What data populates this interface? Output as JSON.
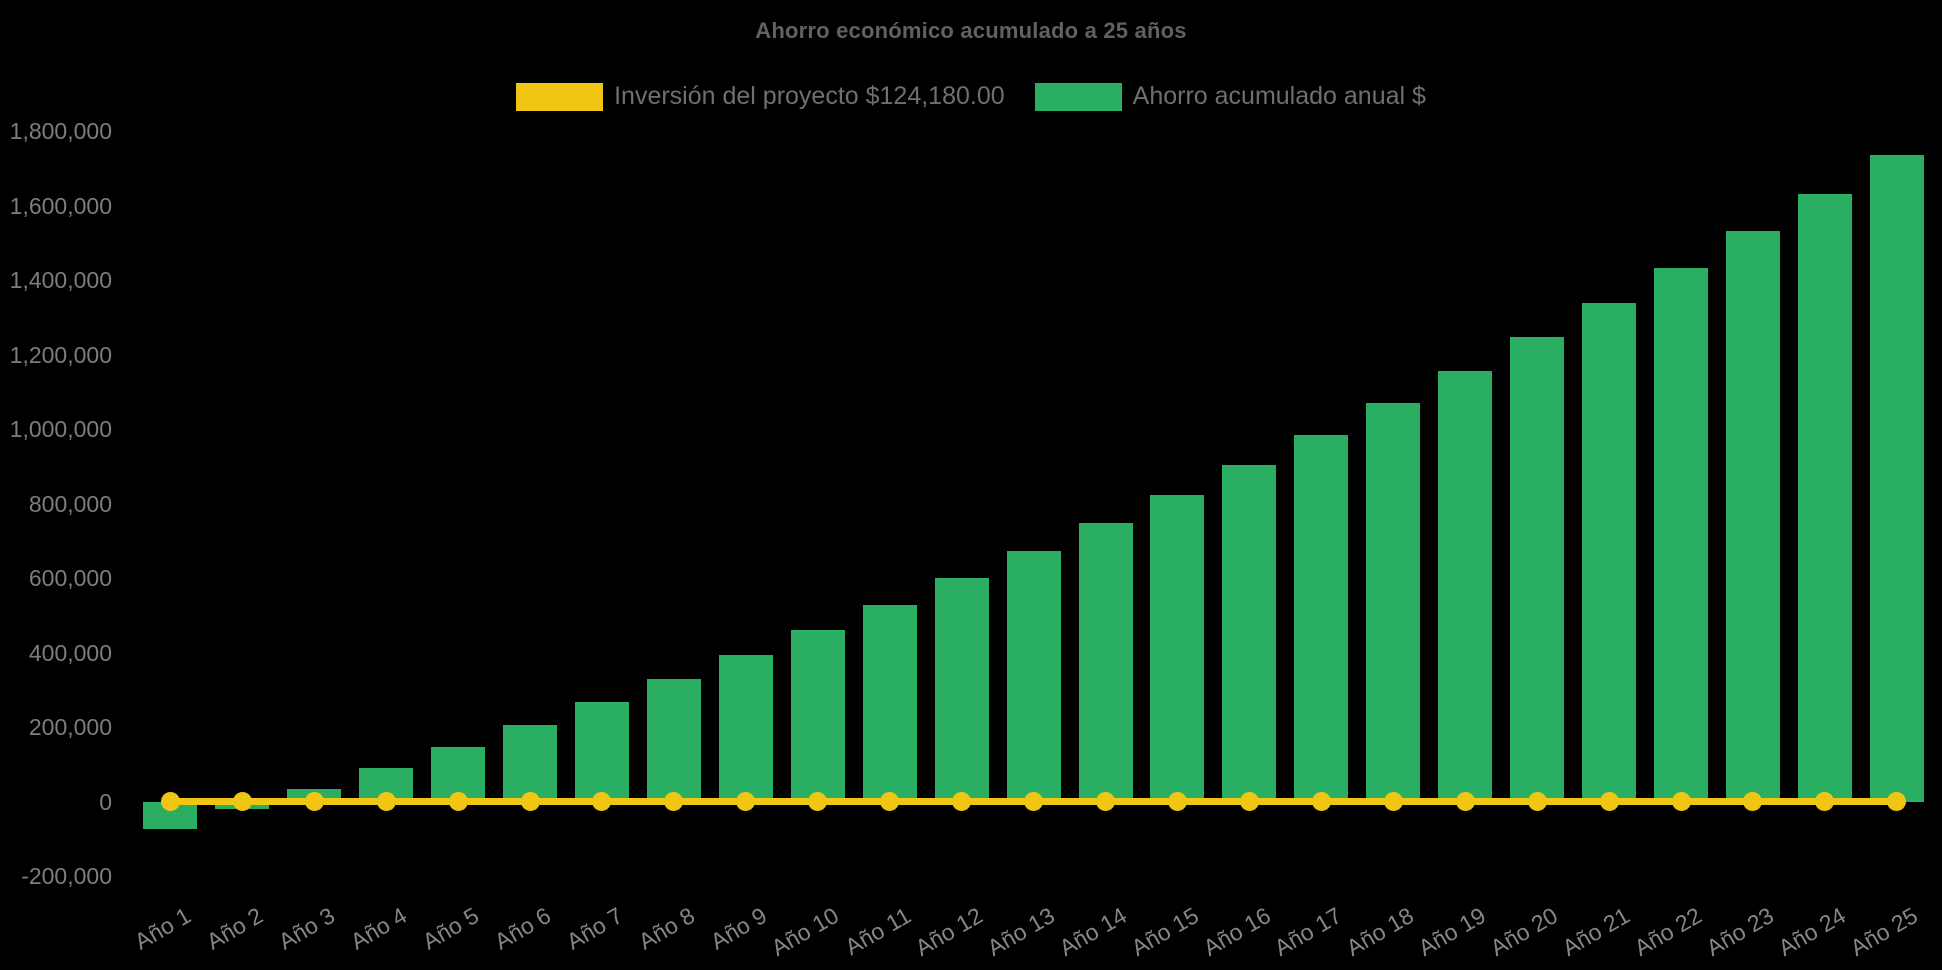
{
  "title": "Ahorro económico acumulado a 25 años",
  "legend": {
    "items": [
      {
        "label": "Inversión del proyecto $124,180.00",
        "color": "#f0c514"
      },
      {
        "label": "Ahorro acumulado anual $",
        "color": "#2aae61"
      }
    ]
  },
  "chart_data": {
    "type": "bar",
    "title": "Ahorro económico acumulado a 25 años",
    "xlabel": "",
    "ylabel": "",
    "background": "#000000",
    "grid": false,
    "legend_position": "top",
    "categories": [
      "Año 1",
      "Año 2",
      "Año 3",
      "Año 4",
      "Año 5",
      "Año 6",
      "Año 7",
      "Año 8",
      "Año 9",
      "Año 10",
      "Año 11",
      "Año 12",
      "Año 13",
      "Año 14",
      "Año 15",
      "Año 16",
      "Año 17",
      "Año 18",
      "Año 19",
      "Año 20",
      "Año 21",
      "Año 22",
      "Año 23",
      "Año 24",
      "Año 25"
    ],
    "series": [
      {
        "name": "Inversión del proyecto $124,180.00",
        "type": "line",
        "color": "#f0c514",
        "investment_value": 124180,
        "plotted_level": 0,
        "values": [
          0,
          0,
          0,
          0,
          0,
          0,
          0,
          0,
          0,
          0,
          0,
          0,
          0,
          0,
          0,
          0,
          0,
          0,
          0,
          0,
          0,
          0,
          0,
          0,
          0
        ]
      },
      {
        "name": "Ahorro acumulado anual $",
        "type": "bar",
        "color": "#2aae61",
        "values": [
          -73180,
          -20650,
          33456,
          89185,
          146586,
          205709,
          266606,
          329329,
          393934,
          460478,
          529018,
          599614,
          672327,
          747223,
          824365,
          903821,
          985661,
          1069956,
          1156780,
          1246209,
          1338321,
          1433196,
          1530917,
          1631570,
          1735242
        ]
      }
    ],
    "y_ticks": [
      {
        "value": 1800000,
        "label": "1,800,000"
      },
      {
        "value": 1600000,
        "label": "1,600,000"
      },
      {
        "value": 1400000,
        "label": "1,400,000"
      },
      {
        "value": 1200000,
        "label": "1,200,000"
      },
      {
        "value": 1000000,
        "label": "1,000,000"
      },
      {
        "value": 800000,
        "label": "800,000"
      },
      {
        "value": 600000,
        "label": "600,000"
      },
      {
        "value": 400000,
        "label": "400,000"
      },
      {
        "value": 200000,
        "label": "200,000"
      },
      {
        "value": 0,
        "label": "0"
      },
      {
        "value": -200000,
        "label": "-200,000"
      }
    ],
    "ylim": [
      -280000,
      1880000
    ],
    "x_tick_rotation_deg": -30
  }
}
